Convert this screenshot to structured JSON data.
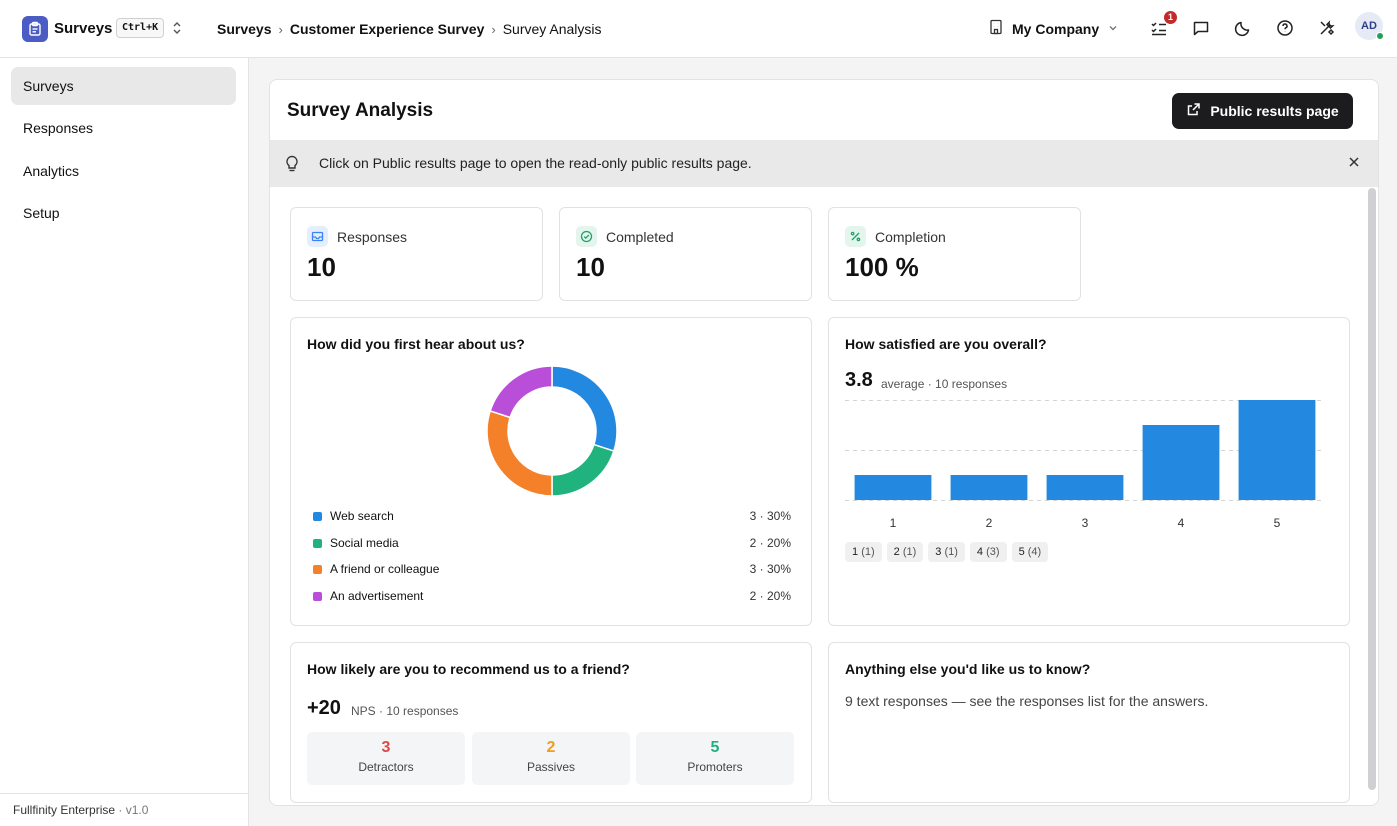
{
  "app": {
    "name": "Surveys",
    "shortcut": "Ctrl+K"
  },
  "breadcrumb": [
    "Surveys",
    "Customer Experience Survey",
    "Survey Analysis"
  ],
  "header": {
    "company": "My Company",
    "notification_count": "1",
    "avatar_initials": "AD",
    "icons": [
      "building-icon",
      "tasks-icon",
      "chat-icon",
      "moon-icon",
      "help-icon",
      "tools-icon"
    ]
  },
  "sidebar": {
    "items": [
      {
        "label": "Surveys",
        "active": true
      },
      {
        "label": "Responses",
        "active": false
      },
      {
        "label": "Analytics",
        "active": false
      },
      {
        "label": "Setup",
        "active": false
      }
    ],
    "footer_product": "Fullfinity Enterprise",
    "footer_version": "· v1.0"
  },
  "page": {
    "title": "Survey Analysis",
    "public_button": "Public results page",
    "hint": "Click on Public results page to open the read-only public results page."
  },
  "stats": [
    {
      "label": "Responses",
      "value": "10",
      "icon": "inbox-icon",
      "color": "#3b82f6"
    },
    {
      "label": "Completed",
      "value": "10",
      "icon": "check-circle-icon",
      "color": "#22a06b"
    },
    {
      "label": "Completion",
      "value": "100 %",
      "icon": "percent-icon",
      "color": "#22a06b"
    }
  ],
  "questions": {
    "hear": {
      "title": "How did you first hear about us?",
      "items": [
        {
          "label": "Web search",
          "value": "3 · 30%",
          "color": "#2389e0"
        },
        {
          "label": "Social media",
          "value": "2 · 20%",
          "color": "#21b37e"
        },
        {
          "label": "A friend or colleague",
          "value": "3 · 30%",
          "color": "#f4802a"
        },
        {
          "label": "An advertisement",
          "value": "2 · 20%",
          "color": "#b94fd9"
        }
      ]
    },
    "satisfaction": {
      "title": "How satisfied are you overall?",
      "average": "3.8",
      "sub": "average · 10 responses",
      "chips": [
        {
          "k": "1",
          "n": "(1)"
        },
        {
          "k": "2",
          "n": "(1)"
        },
        {
          "k": "3",
          "n": "(1)"
        },
        {
          "k": "4",
          "n": "(3)"
        },
        {
          "k": "5",
          "n": "(4)"
        }
      ]
    },
    "nps": {
      "title": "How likely are you to recommend us to a friend?",
      "score": "+20",
      "sub": "NPS · 10 responses",
      "groups": [
        {
          "count": "3",
          "label": "Detractors",
          "color": "#e04646"
        },
        {
          "count": "2",
          "label": "Passives",
          "color": "#f29b1d"
        },
        {
          "count": "5",
          "label": "Promoters",
          "color": "#1eb07e"
        }
      ]
    },
    "text": {
      "title": "Anything else you'd like us to know?",
      "note": "9 text responses — see the responses list for the answers."
    }
  },
  "chart_data": [
    {
      "type": "pie",
      "title": "How did you first hear about us?",
      "categories": [
        "Web search",
        "Social media",
        "A friend or colleague",
        "An advertisement"
      ],
      "values": [
        3,
        2,
        3,
        2
      ],
      "colors": [
        "#2389e0",
        "#21b37e",
        "#f4802a",
        "#b94fd9"
      ],
      "donut": true,
      "legend": "bottom"
    },
    {
      "type": "bar",
      "title": "How satisfied are you overall?",
      "categories": [
        "1",
        "2",
        "3",
        "4",
        "5"
      ],
      "values": [
        1,
        1,
        1,
        3,
        4
      ],
      "ylim": [
        0,
        4
      ],
      "color": "#2389e0",
      "grid": true
    }
  ]
}
